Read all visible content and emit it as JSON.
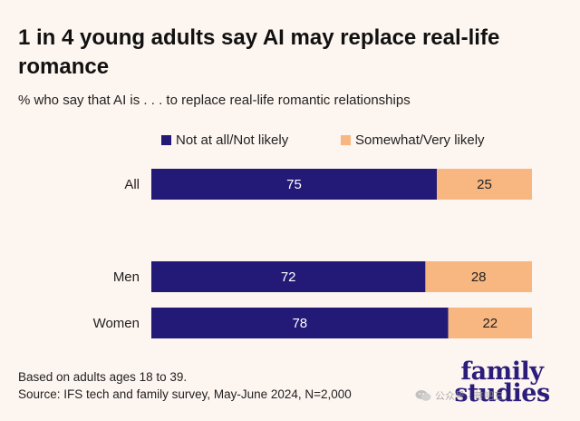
{
  "title": "1 in 4 young adults say AI may replace real-life romance",
  "subtitle": "% who say that AI is . . . to replace real-life romantic relationships",
  "chart_data": {
    "type": "bar",
    "orientation": "horizontal",
    "stacked": true,
    "categories": [
      "All",
      "Men",
      "Women"
    ],
    "series": [
      {
        "name": "Not at all/Not likely",
        "values": [
          75,
          72,
          78
        ],
        "color": "#231a78"
      },
      {
        "name": "Somewhat/Very likely",
        "values": [
          25,
          28,
          22
        ],
        "color": "#f8b680"
      }
    ],
    "xlim": [
      0,
      100
    ],
    "legend": "top",
    "grid": false,
    "data_labels": true
  },
  "footnote": {
    "line1": "Based on adults ages 18 to 39.",
    "line2": "Source: IFS tech and family survey, May-June 2024, N=2,000"
  },
  "brand": {
    "line1": "family",
    "line2": "studies",
    "color": "#2c1d7a"
  },
  "watermark": {
    "text": "公众号 · 普吧三",
    "icon": "wechat-icon"
  }
}
